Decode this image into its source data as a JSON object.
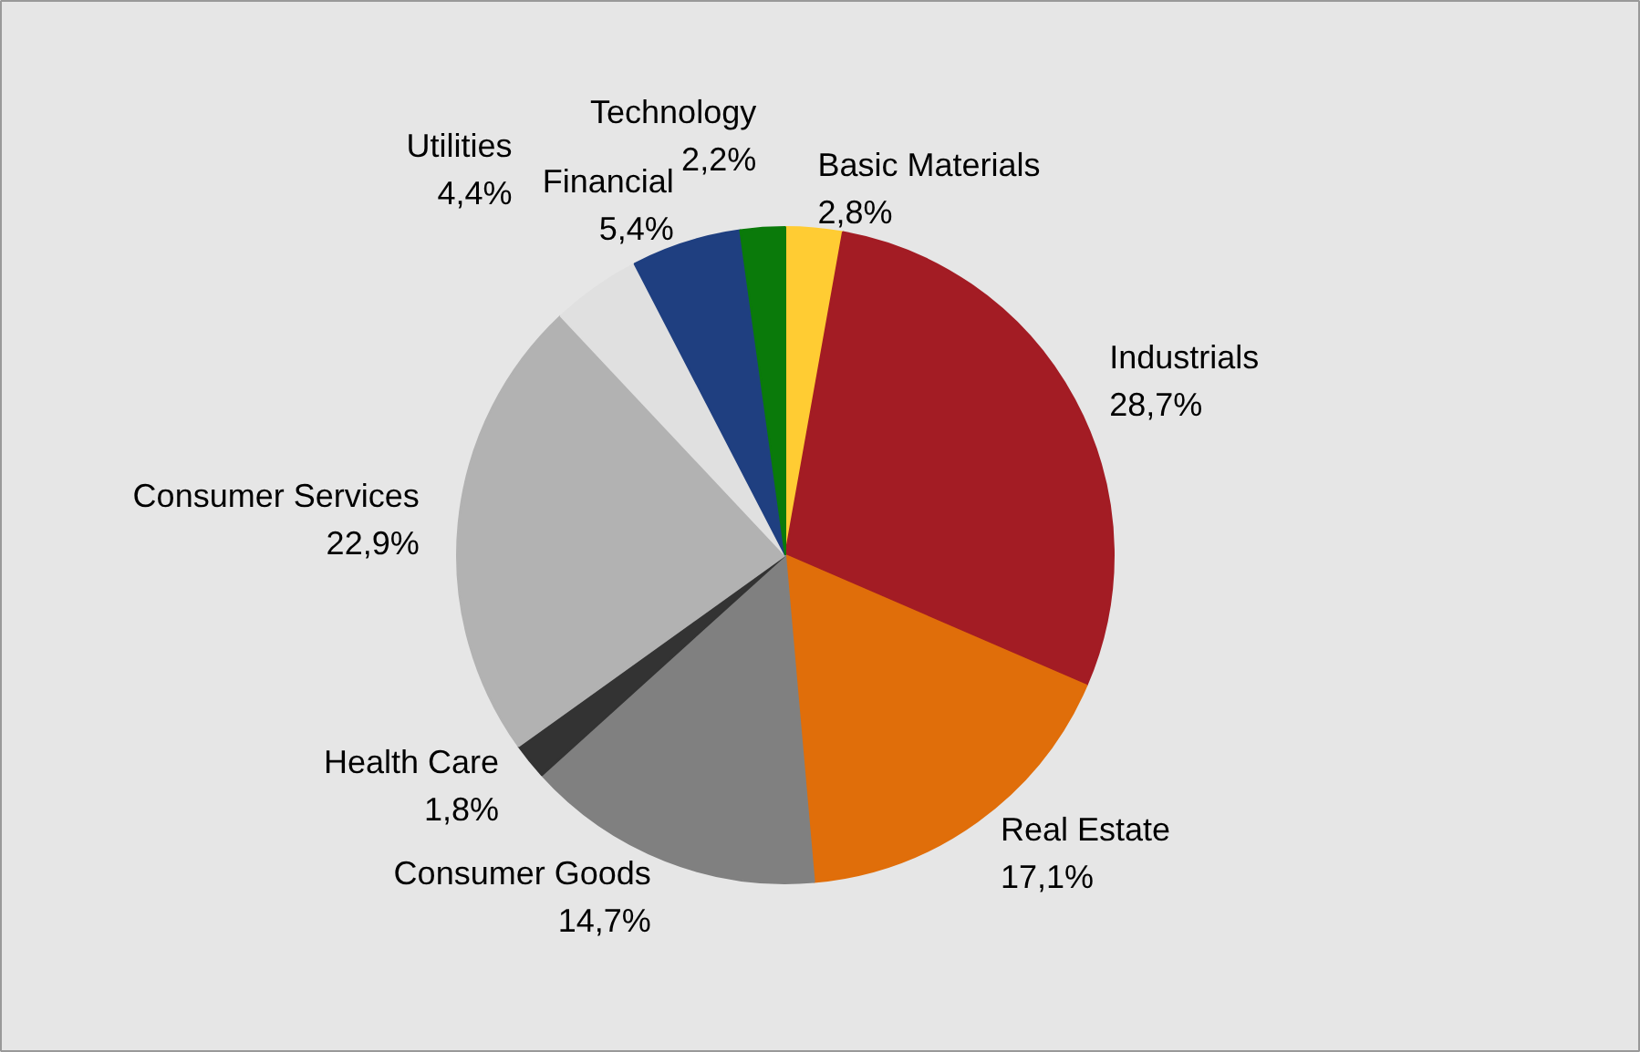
{
  "chart_data": {
    "type": "pie",
    "categories": [
      "Basic Materials",
      "Industrials",
      "Real Estate",
      "Consumer Goods",
      "Health Care",
      "Consumer Services",
      "Utilities",
      "Financial",
      "Technology"
    ],
    "values": [
      2.8,
      28.7,
      17.1,
      14.7,
      1.8,
      22.9,
      4.4,
      5.4,
      2.2
    ],
    "colors": [
      "#ffcc33",
      "#a31c24",
      "#e06e0a",
      "#808080",
      "#333333",
      "#b2b2b2",
      "#e0e0e0",
      "#1f3f80",
      "#0a7a0a"
    ],
    "value_labels": [
      "2,8%",
      "28,7%",
      "17,1%",
      "14,7%",
      "1,8%",
      "22,9%",
      "4,4%",
      "5,4%",
      "2,2%"
    ]
  }
}
